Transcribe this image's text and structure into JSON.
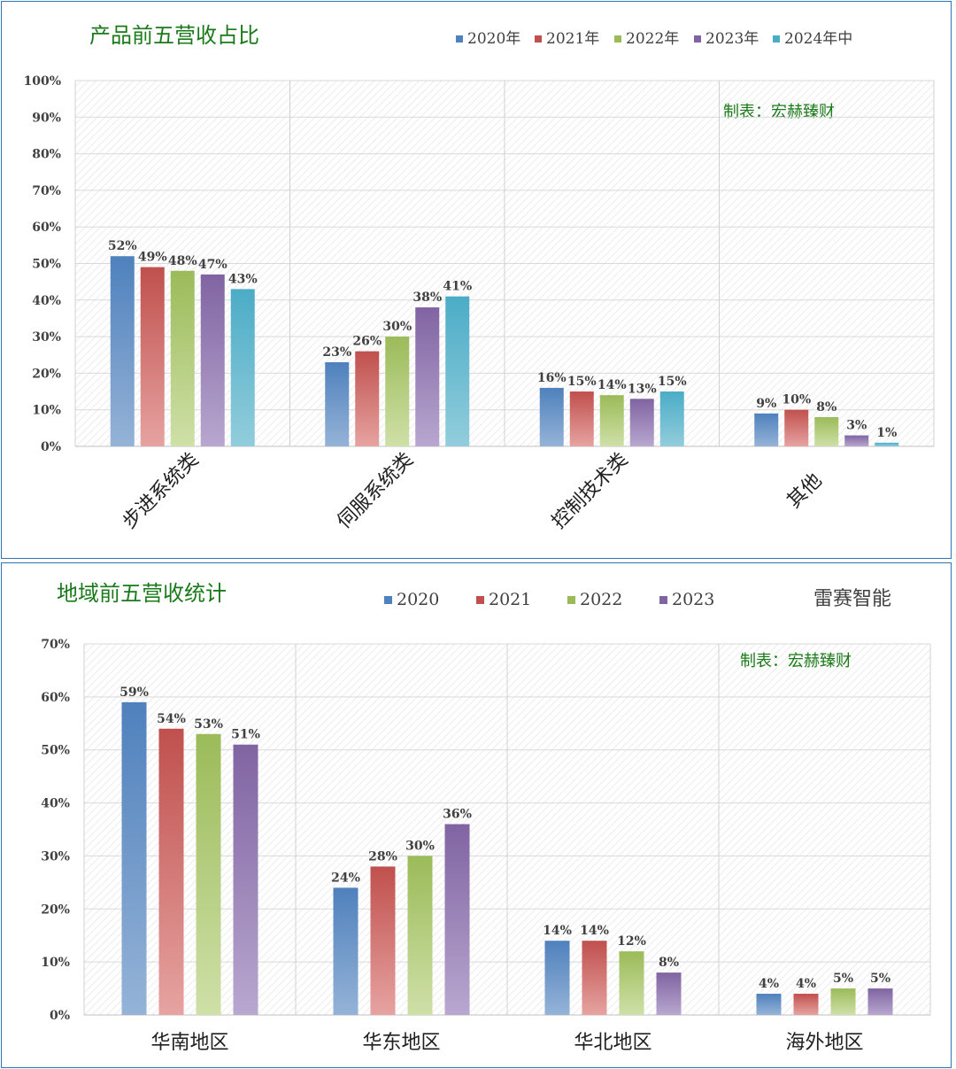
{
  "colors": {
    "series": [
      "#4f81bd",
      "#c0504d",
      "#9bbb59",
      "#8064a2",
      "#4bacc6"
    ],
    "series_light": [
      "#95b3d7",
      "#e6a3a1",
      "#cfe0a8",
      "#b8a7cf",
      "#92cddc"
    ],
    "title": "#1a7a1a",
    "frame": "#2e75b6"
  },
  "chart_data": [
    {
      "type": "bar",
      "title": "产品前五营收占比",
      "credit": "制表：宏赫臻财",
      "legend_position": "top-right",
      "grid": true,
      "ylim": [
        0,
        100
      ],
      "y_ticks": [
        "0%",
        "10%",
        "20%",
        "30%",
        "40%",
        "50%",
        "60%",
        "70%",
        "80%",
        "90%",
        "100%"
      ],
      "categories": [
        "步进系统类",
        "伺服系统类",
        "控制技术类",
        "其他"
      ],
      "series": [
        {
          "name": "2020年",
          "values": [
            52,
            23,
            16,
            9
          ],
          "labels": [
            "52%",
            "23%",
            "16%",
            "9%"
          ]
        },
        {
          "name": "2021年",
          "values": [
            49,
            26,
            15,
            10
          ],
          "labels": [
            "49%",
            "26%",
            "15%",
            "10%"
          ]
        },
        {
          "name": "2022年",
          "values": [
            48,
            30,
            14,
            8
          ],
          "labels": [
            "48%",
            "30%",
            "14%",
            "8%"
          ]
        },
        {
          "name": "2023年",
          "values": [
            47,
            38,
            13,
            3
          ],
          "labels": [
            "47%",
            "38%",
            "13%",
            "3%"
          ]
        },
        {
          "name": "2024年中",
          "values": [
            43,
            41,
            15,
            1
          ],
          "labels": [
            "43%",
            "41%",
            "15%",
            "1%"
          ]
        }
      ]
    },
    {
      "type": "bar",
      "title": "地域前五营收统计",
      "brand": "雷赛智能",
      "credit": "制表：宏赫臻财",
      "legend_position": "top-center",
      "grid": true,
      "ylim": [
        0,
        70
      ],
      "y_ticks": [
        "0%",
        "10%",
        "20%",
        "30%",
        "40%",
        "50%",
        "60%",
        "70%"
      ],
      "categories": [
        "华南地区",
        "华东地区",
        "华北地区",
        "海外地区"
      ],
      "series": [
        {
          "name": "2020",
          "values": [
            59,
            24,
            14,
            4
          ],
          "labels": [
            "59%",
            "24%",
            "14%",
            "4%"
          ]
        },
        {
          "name": "2021",
          "values": [
            54,
            28,
            14,
            4
          ],
          "labels": [
            "54%",
            "28%",
            "14%",
            "4%"
          ]
        },
        {
          "name": "2022",
          "values": [
            53,
            30,
            12,
            5
          ],
          "labels": [
            "53%",
            "30%",
            "12%",
            "5%"
          ]
        },
        {
          "name": "2023",
          "values": [
            51,
            36,
            8,
            5
          ],
          "labels": [
            "51%",
            "36%",
            "8%",
            "5%"
          ]
        }
      ]
    }
  ]
}
